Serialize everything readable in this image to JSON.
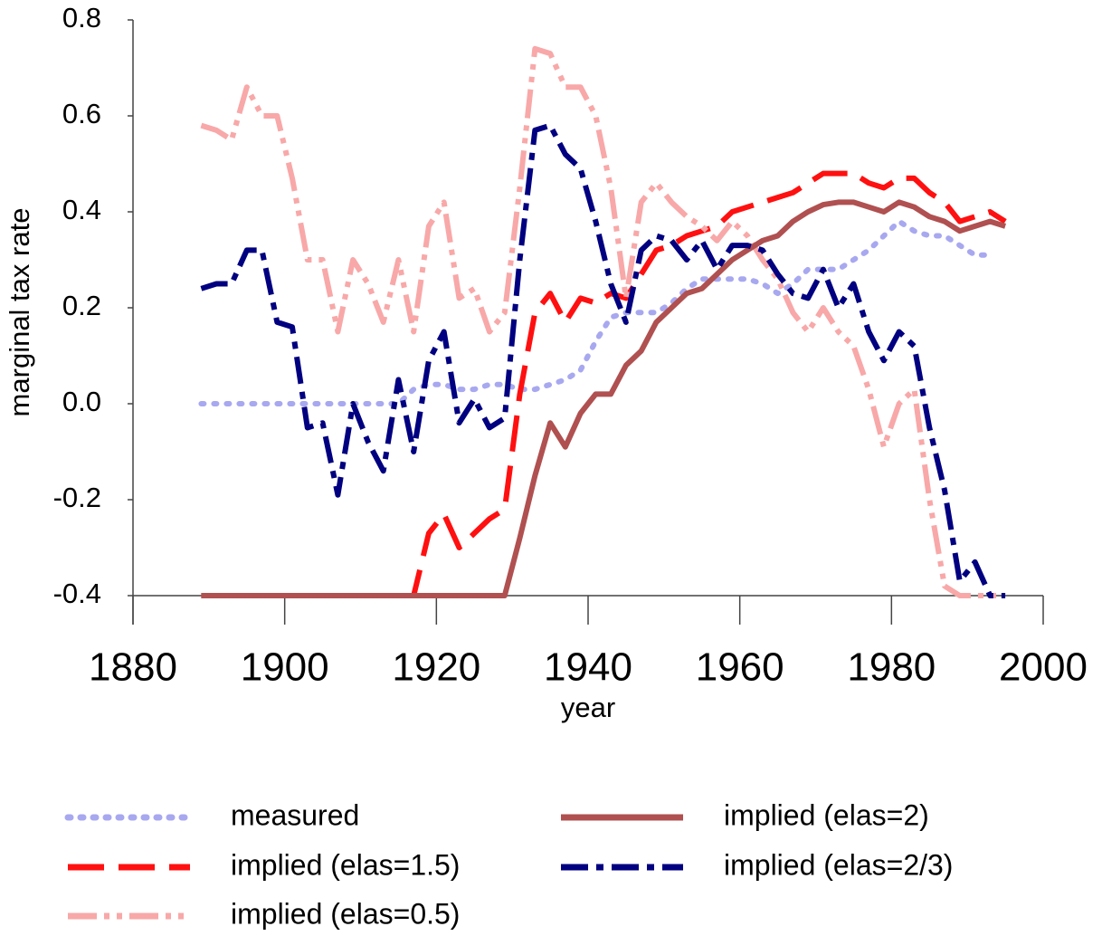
{
  "chart_data": {
    "type": "line",
    "xlabel": "year",
    "ylabel": "marginal tax rate",
    "xlim": [
      1880,
      2000
    ],
    "xticks": [
      1880,
      1900,
      1920,
      1940,
      1960,
      1980,
      2000
    ],
    "ylim": [
      -0.4,
      0.8
    ],
    "yticks": [
      0.8,
      0.6,
      0.4,
      0.2,
      {
        "value": 0,
        "label": "0.0"
      },
      -0.2,
      -0.4
    ],
    "x": [
      1889,
      1891,
      1893,
      1895,
      1897,
      1899,
      1901,
      1903,
      1905,
      1907,
      1909,
      1911,
      1913,
      1915,
      1917,
      1919,
      1921,
      1923,
      1925,
      1927,
      1929,
      1931,
      1933,
      1935,
      1937,
      1939,
      1941,
      1943,
      1945,
      1947,
      1949,
      1951,
      1953,
      1955,
      1957,
      1959,
      1961,
      1963,
      1965,
      1967,
      1969,
      1971,
      1973,
      1975,
      1977,
      1979,
      1981,
      1983,
      1985,
      1987,
      1989,
      1991,
      1993,
      1995
    ],
    "series": [
      {
        "name": "measured",
        "color": "#a8a8f0",
        "values": [
          0,
          0,
          0,
          0,
          0,
          0,
          0,
          0,
          0,
          0,
          0,
          0,
          0,
          0,
          0.03,
          0.04,
          0.04,
          0.03,
          0.03,
          0.04,
          0.04,
          0.03,
          0.03,
          0.04,
          0.05,
          0.07,
          0.13,
          0.18,
          0.19,
          0.19,
          0.19,
          0.21,
          0.24,
          0.26,
          0.26,
          0.26,
          0.26,
          0.25,
          0.23,
          0.25,
          0.28,
          0.28,
          0.28,
          0.3,
          0.32,
          0.35,
          0.38,
          0.36,
          0.35,
          0.35,
          0.33,
          0.31,
          0.31,
          null
        ]
      },
      {
        "name": "implied (elas=1.5)",
        "color": "#ff1010",
        "values": [
          -0.4,
          -0.4,
          -0.4,
          -0.4,
          -0.4,
          -0.4,
          -0.4,
          -0.4,
          -0.4,
          -0.4,
          -0.4,
          -0.4,
          -0.4,
          -0.4,
          -0.4,
          -0.27,
          -0.23,
          -0.3,
          -0.27,
          -0.24,
          -0.22,
          0.02,
          0.19,
          0.23,
          0.17,
          0.22,
          0.21,
          0.23,
          0.22,
          0.27,
          0.32,
          0.33,
          0.35,
          0.36,
          0.37,
          0.4,
          0.41,
          0.42,
          0.43,
          0.44,
          0.46,
          0.48,
          0.48,
          0.48,
          0.46,
          0.45,
          0.47,
          0.47,
          0.44,
          0.42,
          0.38,
          0.39,
          0.4,
          0.38
        ]
      },
      {
        "name": "implied (elas=0.5)",
        "color": "#f8a8a8",
        "values": [
          0.58,
          0.57,
          0.55,
          0.66,
          0.6,
          0.6,
          0.47,
          0.3,
          0.3,
          0.15,
          0.3,
          0.25,
          0.17,
          0.3,
          0.15,
          0.37,
          0.42,
          0.22,
          0.24,
          0.15,
          0.19,
          0.45,
          0.74,
          0.73,
          0.66,
          0.66,
          0.6,
          0.45,
          0.22,
          0.42,
          0.46,
          0.42,
          0.39,
          0.37,
          0.34,
          0.38,
          0.35,
          0.3,
          0.26,
          0.19,
          0.15,
          0.2,
          0.15,
          0.12,
          0.03,
          -0.09,
          0,
          0.03,
          -0.2,
          -0.38,
          -0.4,
          -0.4,
          -0.4,
          -0.4
        ]
      },
      {
        "name": "implied (elas=2)",
        "color": "#b05050",
        "values": [
          -0.4,
          -0.4,
          -0.4,
          -0.4,
          -0.4,
          -0.4,
          -0.4,
          -0.4,
          -0.4,
          -0.4,
          -0.4,
          -0.4,
          -0.4,
          -0.4,
          -0.4,
          -0.4,
          -0.4,
          -0.4,
          -0.4,
          -0.4,
          -0.4,
          -0.28,
          -0.15,
          -0.04,
          -0.09,
          -0.02,
          0.02,
          0.02,
          0.08,
          0.11,
          0.17,
          0.2,
          0.23,
          0.24,
          0.27,
          0.3,
          0.32,
          0.34,
          0.35,
          0.38,
          0.4,
          0.415,
          0.42,
          0.42,
          0.41,
          0.4,
          0.42,
          0.41,
          0.39,
          0.38,
          0.36,
          0.37,
          0.38,
          0.37
        ]
      },
      {
        "name": "implied (elas=2/3)",
        "color": "#000080",
        "values": [
          0.24,
          0.25,
          0.25,
          0.32,
          0.32,
          0.17,
          0.16,
          -0.05,
          -0.04,
          -0.19,
          0,
          -0.08,
          -0.14,
          0.05,
          -0.1,
          0.09,
          0.15,
          -0.04,
          0.01,
          -0.05,
          -0.03,
          0.3,
          0.57,
          0.58,
          0.52,
          0.49,
          0.38,
          0.25,
          0.17,
          0.32,
          0.35,
          0.34,
          0.3,
          0.34,
          0.28,
          0.33,
          0.33,
          0.32,
          0.27,
          0.23,
          0.22,
          0.28,
          0.2,
          0.25,
          0.15,
          0.09,
          0.15,
          0.12,
          -0.05,
          -0.18,
          -0.37,
          -0.33,
          -0.4,
          -0.4
        ]
      }
    ]
  }
}
